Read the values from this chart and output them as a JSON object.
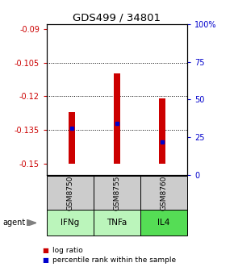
{
  "title": "GDS499 / 34801",
  "samples": [
    "GSM8750",
    "GSM8755",
    "GSM8760"
  ],
  "agents": [
    "IFNg",
    "TNFa",
    "IL4"
  ],
  "log_ratios": [
    -0.127,
    -0.11,
    -0.121
  ],
  "percentile_ranks": [
    0.31,
    0.34,
    0.22
  ],
  "bar_bottom": -0.15,
  "ylim_left": [
    -0.155,
    -0.088
  ],
  "ylim_right": [
    0.0,
    1.0
  ],
  "yticks_left": [
    -0.15,
    -0.135,
    -0.12,
    -0.105,
    -0.09
  ],
  "yticks_right": [
    0.0,
    0.25,
    0.5,
    0.75,
    1.0
  ],
  "ytick_labels_right": [
    "0",
    "25",
    "50",
    "75",
    "100%"
  ],
  "ytick_labels_left": [
    "-0.15",
    "-0.135",
    "-0.12",
    "-0.105",
    "-0.09"
  ],
  "grid_yticks": [
    -0.135,
    -0.12,
    -0.105
  ],
  "bar_color": "#cc0000",
  "rank_color": "#0000cc",
  "agent_colors": [
    "#bbf5bb",
    "#bbf5bb",
    "#55dd55"
  ],
  "sample_bg": "#cccccc",
  "left_label_color": "#cc0000",
  "right_label_color": "#0000cc",
  "bar_width": 0.15
}
